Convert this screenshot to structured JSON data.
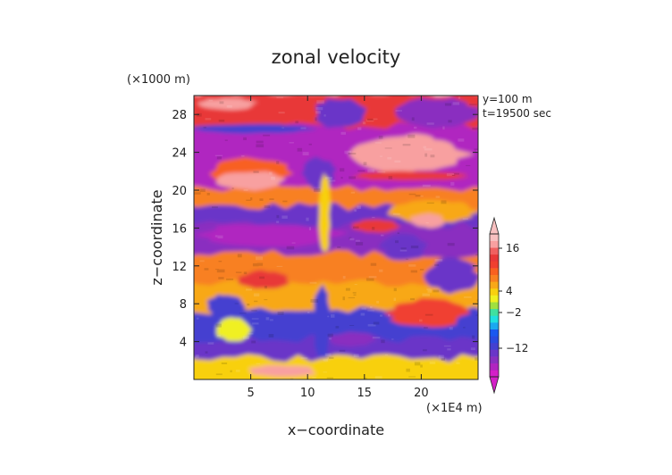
{
  "chart_data": {
    "type": "heatmap",
    "title": "zonal velocity",
    "xlabel": "x−coordinate",
    "ylabel": "z−coordinate",
    "x_scale_label": "(×1E4 m)",
    "y_scale_label": "(×1000 m)",
    "annotations": [
      "y=100 m",
      "t=19500 sec"
    ],
    "xlim": [
      0,
      25
    ],
    "ylim": [
      0,
      30
    ],
    "x_ticks": [
      5,
      10,
      15,
      20
    ],
    "y_ticks": [
      4,
      8,
      12,
      16,
      20,
      24,
      28
    ],
    "colorbar": {
      "levels": [
        -20,
        -18,
        -16,
        -14,
        -12,
        -10,
        -8,
        -6,
        -4,
        -2,
        0,
        2,
        4,
        6,
        8,
        10,
        12,
        14,
        16,
        18,
        20
      ],
      "tick_labels": [
        "16",
        "4",
        "−2",
        "−12"
      ],
      "tick_values": [
        16,
        4,
        -2,
        -12
      ],
      "colors": [
        "#d41fc8",
        "#b025c0",
        "#8a2fc0",
        "#6a35c8",
        "#4440d0",
        "#2a4ae0",
        "#1a58f0",
        "#1aa8f0",
        "#20e0e0",
        "#40e0a0",
        "#a0e040",
        "#f0f020",
        "#f8d010",
        "#f8a818",
        "#f88020",
        "#f86020",
        "#f04030",
        "#e83838",
        "#f06060",
        "#f8a0a0",
        "#f8c0c0"
      ]
    },
    "rows": [
      {
        "z": [
          26.5,
          30
        ],
        "value": 14
      },
      {
        "z": [
          20,
          26.5
        ],
        "value": -18
      },
      {
        "z": [
          18,
          20
        ],
        "value": 8
      },
      {
        "z": [
          16,
          18
        ],
        "value": -14
      },
      {
        "z": [
          13,
          16
        ],
        "value": -16
      },
      {
        "z": [
          10,
          13
        ],
        "value": 8
      },
      {
        "z": [
          7,
          10
        ],
        "value": 6
      },
      {
        "z": [
          4,
          7
        ],
        "value": -12
      },
      {
        "z": [
          2,
          4
        ],
        "value": -14
      },
      {
        "z": [
          0,
          2
        ],
        "value": 4
      }
    ],
    "patches": [
      {
        "x": [
          0.5,
          5.5
        ],
        "z": [
          28.5,
          29.7
        ],
        "value": 18
      },
      {
        "x": [
          10.5,
          15
        ],
        "z": [
          26.5,
          29.8
        ],
        "value": -14
      },
      {
        "x": [
          18,
          25
        ],
        "z": [
          26.5,
          29.8
        ],
        "value": -16
      },
      {
        "x": [
          14,
          24
        ],
        "z": [
          21.8,
          25.8
        ],
        "value": 18
      },
      {
        "x": [
          14,
          24
        ],
        "z": [
          21,
          22
        ],
        "value": 14
      },
      {
        "x": [
          1.5,
          8.5
        ],
        "z": [
          20,
          23.5
        ],
        "value": 10
      },
      {
        "x": [
          2,
          8
        ],
        "z": [
          20,
          22
        ],
        "value": 18
      },
      {
        "x": [
          0,
          10.5
        ],
        "z": [
          26,
          27
        ],
        "value": -12
      },
      {
        "x": [
          9.5,
          12.5
        ],
        "z": [
          20,
          23.5
        ],
        "value": -14
      },
      {
        "x": [
          17,
          25
        ],
        "z": [
          16.5,
          19
        ],
        "value": 6
      },
      {
        "x": [
          19,
          22
        ],
        "z": [
          16,
          17.5
        ],
        "value": 18
      },
      {
        "x": [
          14,
          18
        ],
        "z": [
          15.5,
          17
        ],
        "value": 14
      },
      {
        "x": [
          0,
          13
        ],
        "z": [
          14,
          16.5
        ],
        "value": -18
      },
      {
        "x": [
          16.5,
          20.5
        ],
        "z": [
          12.5,
          15.5
        ],
        "value": -14
      },
      {
        "x": [
          20.5,
          25
        ],
        "z": [
          9,
          13
        ],
        "value": -14
      },
      {
        "x": [
          4,
          8.5
        ],
        "z": [
          9.5,
          11.5
        ],
        "value": 14
      },
      {
        "x": [
          17,
          24
        ],
        "z": [
          5.5,
          8.5
        ],
        "value": 12
      },
      {
        "x": [
          1,
          4.5
        ],
        "z": [
          6.5,
          9
        ],
        "value": -12
      },
      {
        "x": [
          2,
          5
        ],
        "z": [
          4,
          6.5
        ],
        "value": 2
      },
      {
        "x": [
          12,
          16
        ],
        "z": [
          3.5,
          5
        ],
        "value": -16
      },
      {
        "x": [
          4.5,
          11
        ],
        "z": [
          0.3,
          1.5
        ],
        "value": 18
      },
      {
        "x": [
          10.5,
          12
        ],
        "z": [
          2,
          10
        ],
        "value": -12
      },
      {
        "x": [
          11,
          12
        ],
        "z": [
          13,
          22
        ],
        "value": 4
      },
      {
        "x": [
          18,
          21
        ],
        "z": [
          24.5,
          26
        ],
        "value": 18
      }
    ]
  }
}
